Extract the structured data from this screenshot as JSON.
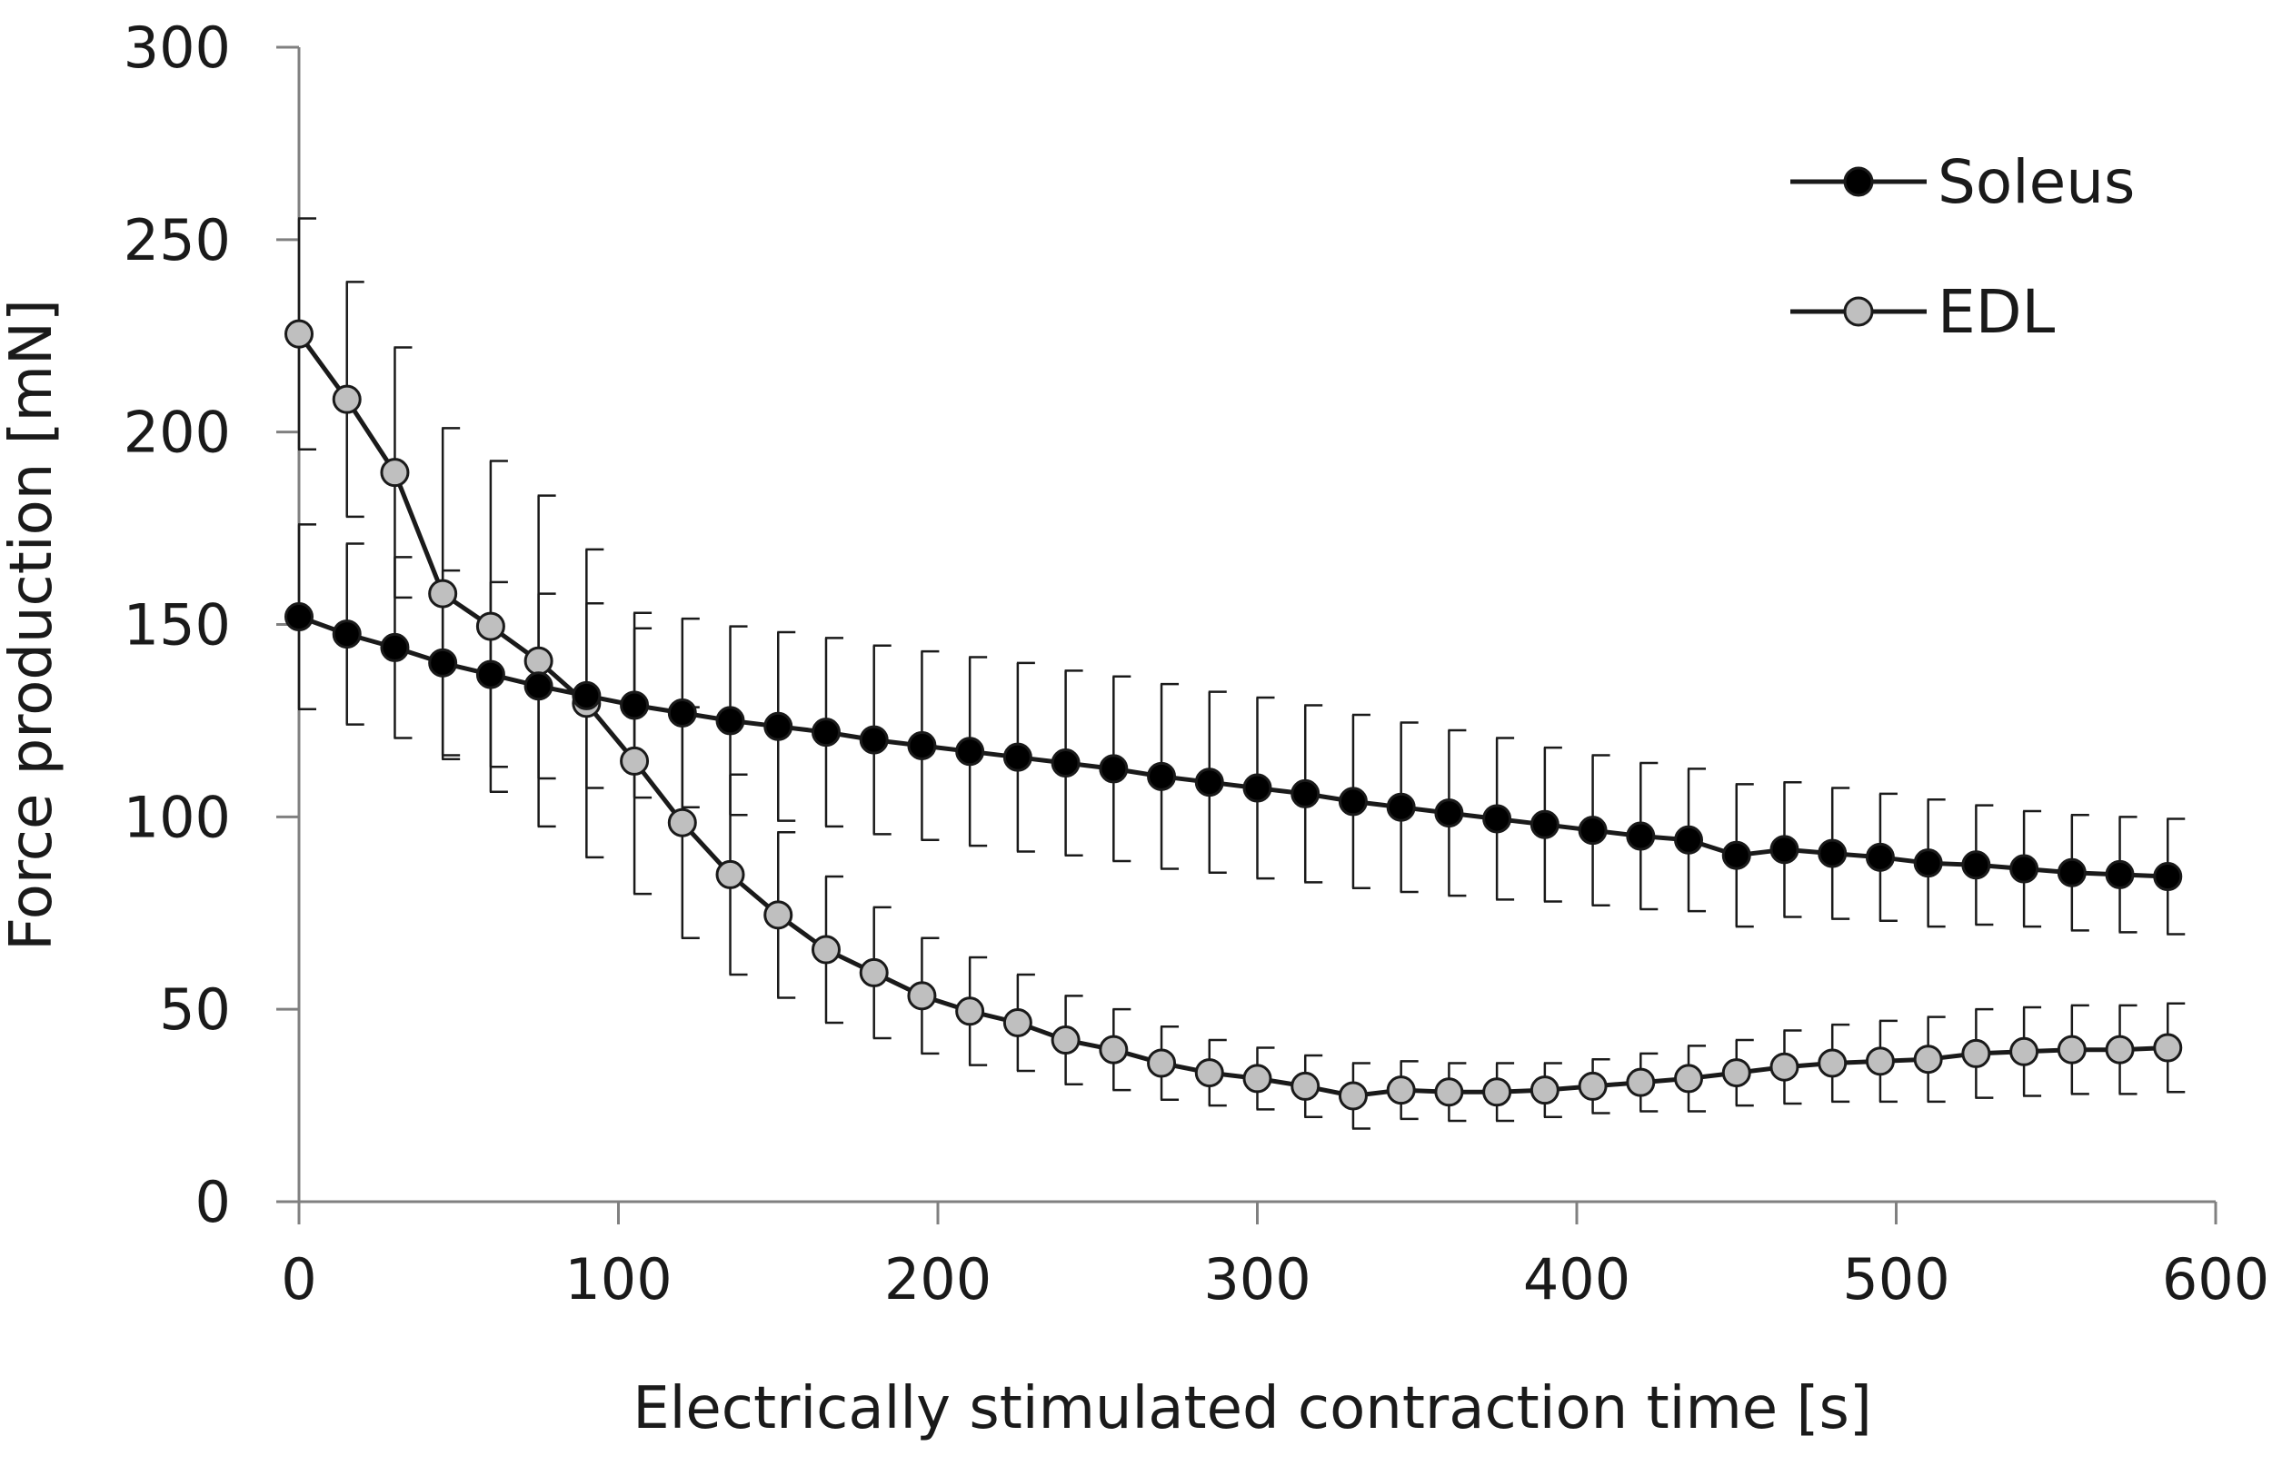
{
  "chart_data": {
    "type": "line",
    "xlabel": "Electrically stimulated contraction time [s]",
    "ylabel": "Force production [mN]",
    "xlim": [
      0,
      600
    ],
    "ylim": [
      0,
      300
    ],
    "xticks": [
      0,
      100,
      200,
      300,
      400,
      500,
      600
    ],
    "yticks": [
      0,
      50,
      100,
      150,
      200,
      250,
      300
    ],
    "grid": false,
    "legend_position": "top-right",
    "x": [
      0,
      15,
      30,
      45,
      60,
      75,
      90,
      105,
      120,
      135,
      150,
      165,
      180,
      195,
      210,
      225,
      240,
      255,
      270,
      285,
      300,
      315,
      330,
      345,
      360,
      375,
      390,
      405,
      420,
      435,
      450,
      465,
      480,
      495,
      510,
      525,
      540,
      555,
      570,
      585
    ],
    "series": [
      {
        "name": "Soleus",
        "marker_fill": "#000000",
        "values": [
          152,
          147.5,
          144,
          140,
          137,
          134,
          131.5,
          129,
          127,
          125,
          123.5,
          122,
          120,
          118.5,
          117,
          115.5,
          114,
          112.5,
          110.5,
          109,
          107.5,
          106,
          104,
          102.5,
          101,
          99.5,
          98,
          96.5,
          95,
          94,
          90,
          91.5,
          90.5,
          89.5,
          88,
          87.5,
          86.5,
          85.5,
          85,
          84.5
        ],
        "errors": [
          24,
          23.5,
          23.5,
          24,
          24,
          24,
          24,
          24,
          24.5,
          24.5,
          24.5,
          24.5,
          24.5,
          24.5,
          24.5,
          24.5,
          24,
          24,
          24,
          23.5,
          23.5,
          23,
          22.5,
          22,
          21.5,
          21,
          20,
          19.5,
          19,
          18.5,
          18.5,
          17.5,
          17,
          16.5,
          16.5,
          15.5,
          15,
          15,
          15,
          15
        ]
      },
      {
        "name": "EDL",
        "marker_fill": "#bfbfbf",
        "values": [
          225.5,
          208.5,
          189.5,
          158,
          149.5,
          140.5,
          129.5,
          114.5,
          98.5,
          85,
          74.5,
          65.5,
          59.5,
          53.5,
          49.5,
          46.5,
          42,
          39.5,
          36,
          33.5,
          32,
          30,
          27.5,
          29,
          28.5,
          28.5,
          29,
          30,
          31,
          32,
          33.5,
          35,
          36,
          36.5,
          37,
          38.5,
          39,
          39.5,
          39.5,
          40
        ]
      }
    ],
    "edl_errors": [
      30,
      30.5,
      32.5,
      43,
      43,
      43,
      40,
      34.5,
      30,
      26,
      21.5,
      19,
      17,
      15,
      14,
      12.5,
      11.5,
      10.5,
      9.5,
      8.5,
      8,
      8,
      8.5,
      7.5,
      7.5,
      7.5,
      7,
      7,
      7.5,
      8.5,
      8.5,
      9.5,
      10,
      10.5,
      11,
      11.5,
      11.5,
      11.5,
      11.5,
      11.5
    ],
    "line_color": "#1a1a1a"
  }
}
